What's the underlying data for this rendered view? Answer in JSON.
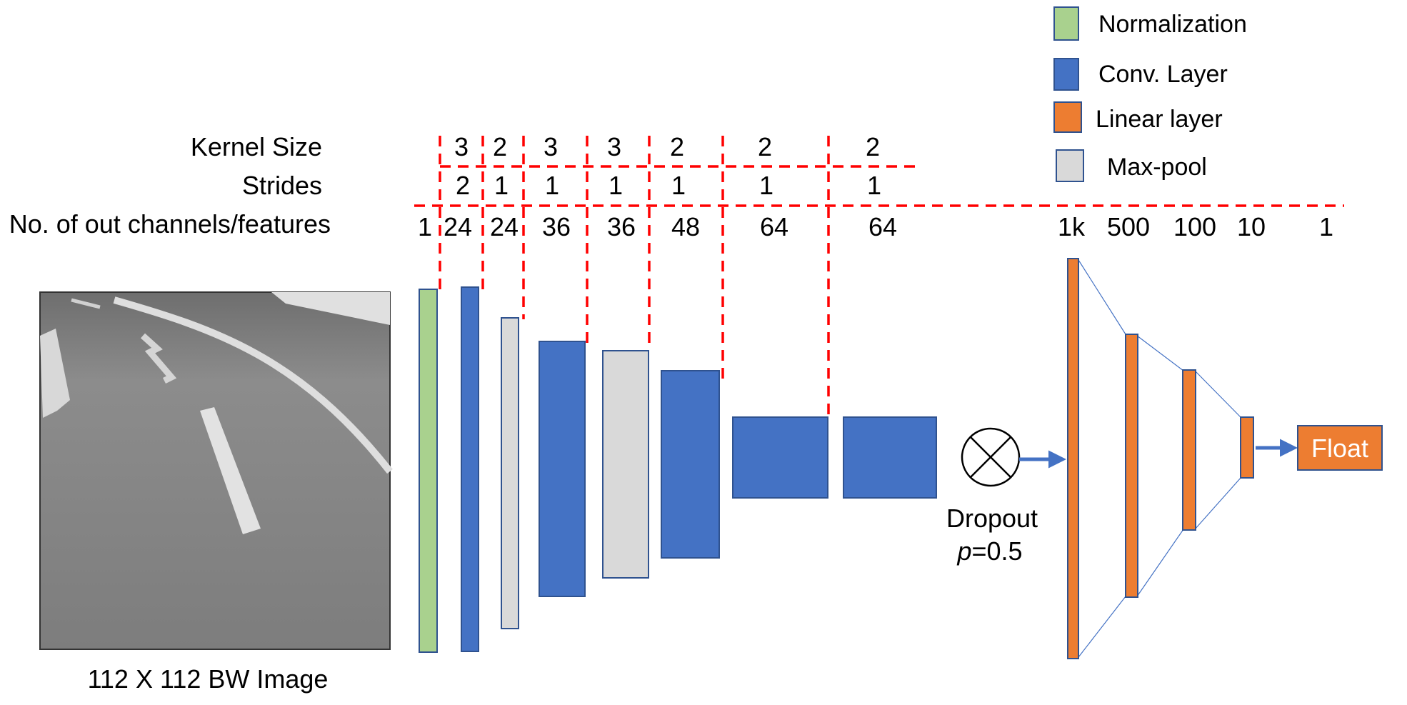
{
  "colors": {
    "normalization": "#a9d18e",
    "conv": "#4472c4",
    "linear": "#ed7d31",
    "maxpool": "#d9d9d9",
    "dash": "#ff0000",
    "road": "#8a8a8a"
  },
  "legend": [
    {
      "label": "Normalization",
      "kind": "normalization"
    },
    {
      "label": "Conv. Layer",
      "kind": "conv"
    },
    {
      "label": "Linear layer",
      "kind": "linear"
    },
    {
      "label": "Max-pool",
      "kind": "maxpool"
    }
  ],
  "row_labels": {
    "kernel": "Kernel Size",
    "strides": "Strides",
    "channels": "No. of out channels/features"
  },
  "kernel_sizes": [
    "3",
    "2",
    "3",
    "3",
    "2",
    "2",
    "2"
  ],
  "strides": [
    "2",
    "1",
    "1",
    "1",
    "1",
    "1",
    "1"
  ],
  "channels": [
    "1",
    "24",
    "24",
    "36",
    "36",
    "48",
    "64",
    "64"
  ],
  "features": [
    "1k",
    "500",
    "100",
    "10",
    "1"
  ],
  "input_caption": "112 X 112 BW Image",
  "dropout": {
    "label": "Dropout",
    "p_symbol": "p",
    "p_value": "=0.5"
  },
  "output_label": "Float"
}
